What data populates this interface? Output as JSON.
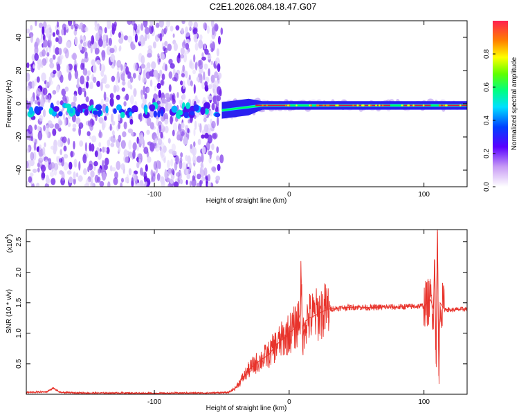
{
  "title": "C2E1.2026.084.18.47.G07",
  "colors": {
    "snr_line": "#e8332b",
    "spectrum_core": "#7a1ee6",
    "frame": "#000000"
  },
  "chart_data": [
    {
      "type": "heatmap",
      "title": "C2E1.2026.084.18.47.G07",
      "xlabel": "Height of straight line (km)",
      "ylabel": "Frequency (Hz)",
      "xlim": [
        -195,
        132
      ],
      "ylim": [
        -50,
        50
      ],
      "x_ticks": [
        {
          "v": -100,
          "label": "-100"
        },
        {
          "v": 0,
          "label": "0"
        },
        {
          "v": 100,
          "label": "100"
        }
      ],
      "y_ticks": [
        {
          "v": 40,
          "label": "40"
        },
        {
          "v": 20,
          "label": "20"
        },
        {
          "v": 0,
          "label": "0"
        },
        {
          "v": -20,
          "label": "-20"
        },
        {
          "v": -40,
          "label": "-40"
        }
      ],
      "noise_region_x": [
        -195,
        -50
      ],
      "ridge": {
        "x": [
          -50,
          -40,
          -30,
          -20,
          -10,
          0,
          10,
          20,
          40,
          60,
          80,
          100,
          110,
          132
        ],
        "freq": [
          -4,
          -3,
          -2,
          -1,
          -1,
          -1,
          -1,
          -1,
          -1,
          -1,
          -1,
          -1,
          -1,
          -1
        ]
      },
      "colorbar": {
        "label": "Normalized spectral amplitude",
        "range": [
          0,
          1
        ],
        "ticks": [
          {
            "v": 0.0,
            "label": "0.0"
          },
          {
            "v": 0.2,
            "label": "0.2"
          },
          {
            "v": 0.4,
            "label": "0.4"
          },
          {
            "v": 0.6,
            "label": "0.6"
          },
          {
            "v": 0.8,
            "label": "0.8"
          }
        ]
      }
    },
    {
      "type": "line",
      "xlabel": "Height of straight line (km)",
      "ylabel": "SNR (10 * v/v)",
      "y_multiplier": "(x10",
      "y_multiplier_exp": "4",
      "y_multiplier_close": ")",
      "xlim": [
        -195,
        132
      ],
      "ylim": [
        0,
        27000
      ],
      "x_ticks": [
        {
          "v": -100,
          "label": "-100"
        },
        {
          "v": 0,
          "label": "0"
        },
        {
          "v": 100,
          "label": "100"
        }
      ],
      "y_ticks": [
        {
          "v": 5000,
          "label": "0.5"
        },
        {
          "v": 10000,
          "label": "1.0"
        },
        {
          "v": 15000,
          "label": "1.5"
        },
        {
          "v": 20000,
          "label": "2.0"
        },
        {
          "v": 25000,
          "label": "2.5"
        }
      ],
      "series": [
        {
          "x": [
            -195,
            -180,
            -175,
            -170,
            -150,
            -120,
            -100,
            -80,
            -60,
            -45,
            -40,
            -35,
            -30,
            -25,
            -20,
            -15,
            -10,
            -5,
            0,
            5,
            8,
            9,
            10,
            12,
            15,
            20,
            25,
            30,
            40,
            50,
            60,
            70,
            80,
            90,
            100,
            105,
            107,
            108,
            109,
            110,
            111,
            112,
            115,
            120,
            125,
            132
          ],
          "y": [
            300,
            400,
            1000,
            300,
            200,
            200,
            150,
            200,
            200,
            300,
            1000,
            2500,
            4000,
            5000,
            5800,
            6500,
            8000,
            9000,
            10000,
            11000,
            13000,
            18000,
            9000,
            12000,
            12500,
            13000,
            13600,
            14000,
            14200,
            14300,
            14200,
            14300,
            14300,
            14400,
            14500,
            15500,
            14000,
            22000,
            5000,
            27000,
            3000,
            15000,
            14000,
            13800,
            13900,
            14000
          ]
        }
      ]
    }
  ]
}
